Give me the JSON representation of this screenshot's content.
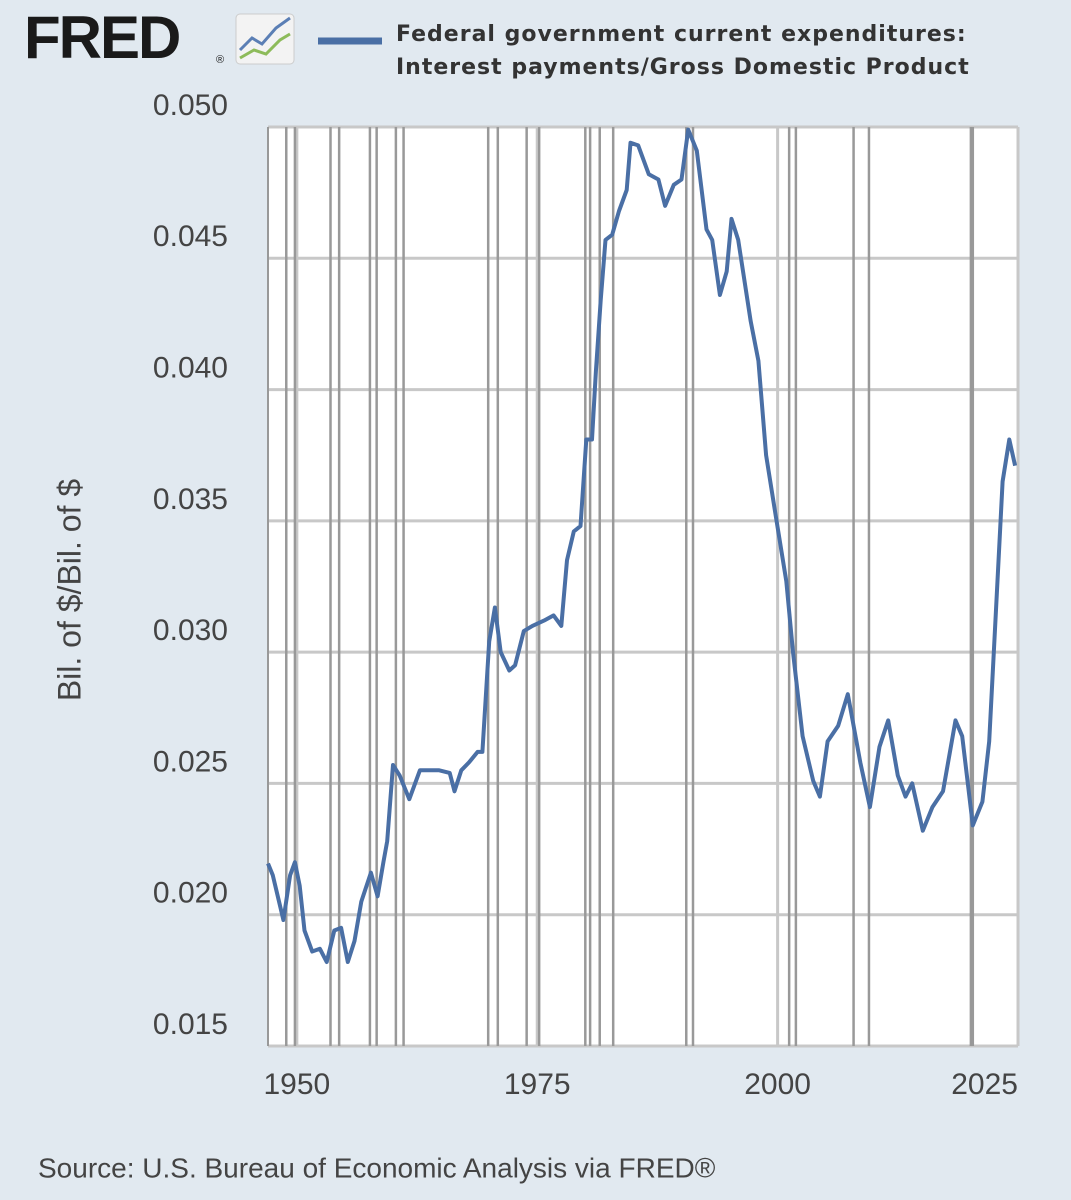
{
  "logo": "FRED",
  "logo_mark": "®",
  "chart_data": {
    "type": "line",
    "y_label": "Bil. of $/Bil. of $",
    "source": "Source: U.S. Bureau of Economic Analysis via FRED®",
    "xlim": [
      1947,
      2025
    ],
    "xticks": [
      1950,
      1975,
      2000,
      2025
    ],
    "ylim": [
      0.015,
      0.05
    ],
    "yticks": [
      {
        "value": 0.015,
        "label": "0.015"
      },
      {
        "value": 0.02,
        "label": "0.020"
      },
      {
        "value": 0.025,
        "label": "0.025"
      },
      {
        "value": 0.03,
        "label": "0.030"
      },
      {
        "value": 0.035,
        "label": "0.035"
      },
      {
        "value": 0.04,
        "label": "0.040"
      },
      {
        "value": 0.045,
        "label": "0.045"
      },
      {
        "value": 0.05,
        "label": "0.050"
      }
    ],
    "grid": true,
    "recessions": [
      [
        1948.9,
        1949.8
      ],
      [
        1953.5,
        1954.4
      ],
      [
        1957.6,
        1958.3
      ],
      [
        1960.3,
        1961.1
      ],
      [
        1969.9,
        1970.9
      ],
      [
        1973.9,
        1975.2
      ],
      [
        1980.0,
        1980.5
      ],
      [
        1981.5,
        1982.9
      ],
      [
        1990.5,
        1991.2
      ],
      [
        2001.2,
        2001.9
      ],
      [
        2007.9,
        2009.5
      ],
      [
        2020.1,
        2020.3
      ]
    ],
    "series": [
      {
        "name": "Federal government current expenditures: Interest payments/Gross Domestic Product",
        "color": "#4a6fa5",
        "x": [
          1947.0,
          1947.5,
          1948.6,
          1949.3,
          1949.8,
          1950.3,
          1950.8,
          1951.6,
          1952.4,
          1953.1,
          1953.9,
          1954.6,
          1955.3,
          1956.0,
          1956.7,
          1957.7,
          1958.4,
          1959.0,
          1959.4,
          1960.0,
          1960.7,
          1961.7,
          1962.8,
          1963.8,
          1964.8,
          1965.9,
          1966.4,
          1967.1,
          1967.9,
          1968.8,
          1969.3,
          1970.0,
          1970.6,
          1971.2,
          1972.1,
          1972.7,
          1973.6,
          1974.5,
          1975.7,
          1976.7,
          1977.5,
          1978.1,
          1978.8,
          1979.5,
          1980.1,
          1980.7,
          1981.1,
          1981.6,
          1982.1,
          1982.8,
          1983.5,
          1984.3,
          1984.7,
          1985.5,
          1986.6,
          1987.6,
          1988.3,
          1989.2,
          1990.0,
          1990.7,
          1991.6,
          1992.6,
          1993.2,
          1994.0,
          1994.7,
          1995.2,
          1995.9,
          1997.2,
          1998.0,
          1998.8,
          1999.8,
          2000.9,
          2001.6,
          2002.6,
          2003.7,
          2004.4,
          2005.2,
          2006.3,
          2007.3,
          2008.6,
          2009.6,
          2010.6,
          2011.5,
          2012.5,
          2013.3,
          2014.0,
          2015.1,
          2016.1,
          2017.2,
          2018.5,
          2019.2,
          2020.3,
          2021.3,
          2022.0,
          2022.6,
          2023.4,
          2024.1,
          2024.7
        ],
        "values": [
          0.02195,
          0.0215,
          0.0198,
          0.0215,
          0.022,
          0.0211,
          0.0194,
          0.0186,
          0.0187,
          0.0182,
          0.0194,
          0.0195,
          0.0182,
          0.019,
          0.0205,
          0.0216,
          0.0207,
          0.022,
          0.0228,
          0.0257,
          0.0253,
          0.0244,
          0.0255,
          0.0255,
          0.0255,
          0.0254,
          0.0247,
          0.0255,
          0.0258,
          0.0262,
          0.0262,
          0.0304,
          0.0317,
          0.03,
          0.0293,
          0.0295,
          0.0308,
          0.031,
          0.0312,
          0.0314,
          0.031,
          0.0335,
          0.0346,
          0.0348,
          0.0381,
          0.0381,
          0.0407,
          0.0434,
          0.0457,
          0.0459,
          0.0468,
          0.0476,
          0.0494,
          0.0493,
          0.0482,
          0.048,
          0.047,
          0.0478,
          0.048,
          0.0499,
          0.0491,
          0.0461,
          0.0457,
          0.0436,
          0.0445,
          0.0465,
          0.0457,
          0.0426,
          0.0411,
          0.0375,
          0.0352,
          0.0327,
          0.03,
          0.0268,
          0.0251,
          0.0245,
          0.0266,
          0.0272,
          0.0284,
          0.0258,
          0.0241,
          0.0264,
          0.0274,
          0.0253,
          0.0245,
          0.025,
          0.0232,
          0.0241,
          0.0247,
          0.0274,
          0.0268,
          0.0234,
          0.0243,
          0.0266,
          0.0308,
          0.0365,
          0.0381,
          0.0371
        ]
      }
    ]
  }
}
